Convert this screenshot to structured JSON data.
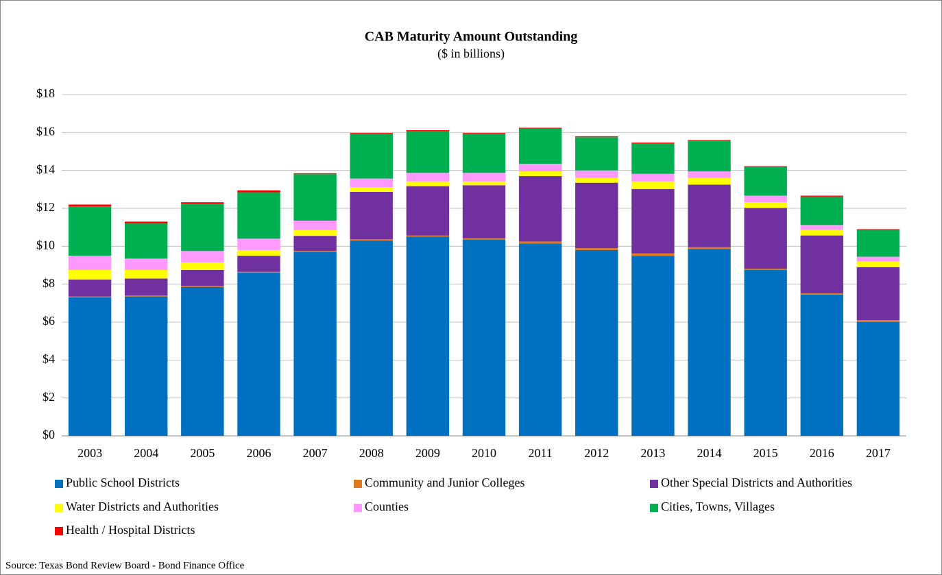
{
  "chart_data": {
    "type": "stacked_bar",
    "title": "CAB Maturity Amount Outstanding",
    "subtitle": "($ in billions)",
    "categories": [
      "2003",
      "2004",
      "2005",
      "2006",
      "2007",
      "2008",
      "2009",
      "2010",
      "2011",
      "2012",
      "2013",
      "2014",
      "2015",
      "2016",
      "2017"
    ],
    "series": [
      {
        "name": "Public School Districts",
        "color": "#0070c0",
        "values": [
          7.3,
          7.35,
          7.85,
          8.6,
          9.7,
          10.3,
          10.5,
          10.35,
          10.15,
          9.8,
          9.5,
          9.85,
          8.75,
          7.45,
          6.0
        ]
      },
      {
        "name": "Community and Junior Colleges",
        "color": "#e07820",
        "values": [
          0.05,
          0.05,
          0.05,
          0.05,
          0.05,
          0.07,
          0.07,
          0.07,
          0.1,
          0.1,
          0.12,
          0.1,
          0.07,
          0.07,
          0.1
        ]
      },
      {
        "name": "Other Special Districts and Authorities",
        "color": "#7030a0",
        "values": [
          0.9,
          0.9,
          0.85,
          0.85,
          0.8,
          2.5,
          2.6,
          2.8,
          3.45,
          3.45,
          3.4,
          3.3,
          3.2,
          3.05,
          2.8
        ]
      },
      {
        "name": "Water Districts and Authorities",
        "color": "#ffff00",
        "values": [
          0.5,
          0.45,
          0.4,
          0.3,
          0.3,
          0.25,
          0.25,
          0.2,
          0.25,
          0.25,
          0.4,
          0.35,
          0.3,
          0.3,
          0.3
        ]
      },
      {
        "name": "Counties",
        "color": "#ff99ff",
        "values": [
          0.75,
          0.6,
          0.6,
          0.6,
          0.5,
          0.45,
          0.45,
          0.45,
          0.4,
          0.4,
          0.4,
          0.35,
          0.35,
          0.25,
          0.25
        ]
      },
      {
        "name": "Cities, Towns, Villages",
        "color": "#00b050",
        "values": [
          2.6,
          1.85,
          2.5,
          2.45,
          2.45,
          2.35,
          2.2,
          2.05,
          1.85,
          1.75,
          1.6,
          1.6,
          1.5,
          1.5,
          1.4
        ]
      },
      {
        "name": "Health / Hospital Districts",
        "color": "#ff0000",
        "values": [
          0.1,
          0.1,
          0.07,
          0.1,
          0.05,
          0.05,
          0.05,
          0.05,
          0.05,
          0.05,
          0.05,
          0.05,
          0.05,
          0.05,
          0.05
        ]
      }
    ],
    "ylim": [
      0,
      18
    ],
    "yticks": [
      {
        "value": 0,
        "label": "$0"
      },
      {
        "value": 2,
        "label": "$2"
      },
      {
        "value": 4,
        "label": "$4"
      },
      {
        "value": 6,
        "label": "$6"
      },
      {
        "value": 8,
        "label": "$8"
      },
      {
        "value": 10,
        "label": "$10"
      },
      {
        "value": 12,
        "label": "$12"
      },
      {
        "value": 14,
        "label": "$14"
      },
      {
        "value": 16,
        "label": "$16"
      },
      {
        "value": 18,
        "label": "$18"
      }
    ],
    "grid": true,
    "source": "Source: Texas Bond Review Board - Bond Finance Office"
  }
}
